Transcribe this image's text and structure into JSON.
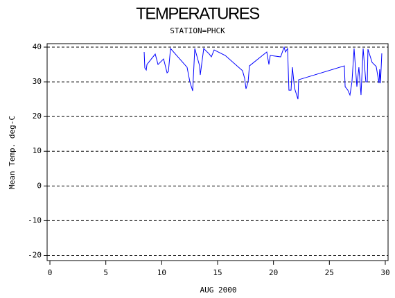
{
  "chart_data": {
    "type": "line",
    "title": "TEMPERATURES",
    "subtitle": "STATION=PHCK",
    "x_label": "AUG 2000",
    "y_label": "Mean Temp. deg-C",
    "color": "#0000ff",
    "grid": true,
    "xlim": [
      -0.25,
      30.25
    ],
    "xticks": [
      0,
      5,
      10,
      15,
      20,
      25,
      30
    ],
    "ylim": [
      -21.5,
      41
    ],
    "yticks": [
      -20,
      -10,
      0,
      10,
      20,
      30,
      40
    ],
    "x": [
      8.43,
      8.49,
      8.62,
      8.68,
      9.42,
      9.67,
      10.17,
      10.48,
      10.6,
      10.79,
      12.27,
      12.52,
      12.77,
      12.96,
      13.39,
      13.45,
      13.58,
      13.76,
      14.26,
      14.44,
      14.69,
      15.68,
      17.23,
      17.42,
      17.54,
      17.73,
      17.85,
      19.4,
      19.59,
      19.71,
      20.64,
      20.95,
      21.07,
      21.26,
      21.38,
      21.57,
      21.69,
      21.88,
      22.19,
      22.25,
      26.34,
      26.41,
      26.65,
      26.84,
      27.02,
      27.21,
      27.46,
      27.64,
      27.83,
      28.02,
      28.26,
      28.39,
      28.45,
      28.82,
      29.19,
      29.44,
      29.5,
      29.57,
      29.69
    ],
    "values": [
      38.6,
      34,
      33.4,
      35,
      38,
      35,
      36.6,
      32.6,
      33,
      39.6,
      34.2,
      30,
      27.4,
      39.6,
      34.6,
      32,
      35.2,
      39.6,
      38,
      37.2,
      39.2,
      37.6,
      33.2,
      31,
      28,
      30,
      34.6,
      38.6,
      35,
      37.6,
      37.2,
      40,
      38.6,
      39.6,
      27.6,
      27.6,
      34.2,
      28.2,
      25,
      30.6,
      34.6,
      28.6,
      27.6,
      26.2,
      30,
      39.6,
      28.6,
      34.2,
      26.2,
      39.6,
      30,
      30,
      39.4,
      35.6,
      34.4,
      29.6,
      33.6,
      29.6,
      38.2
    ]
  }
}
